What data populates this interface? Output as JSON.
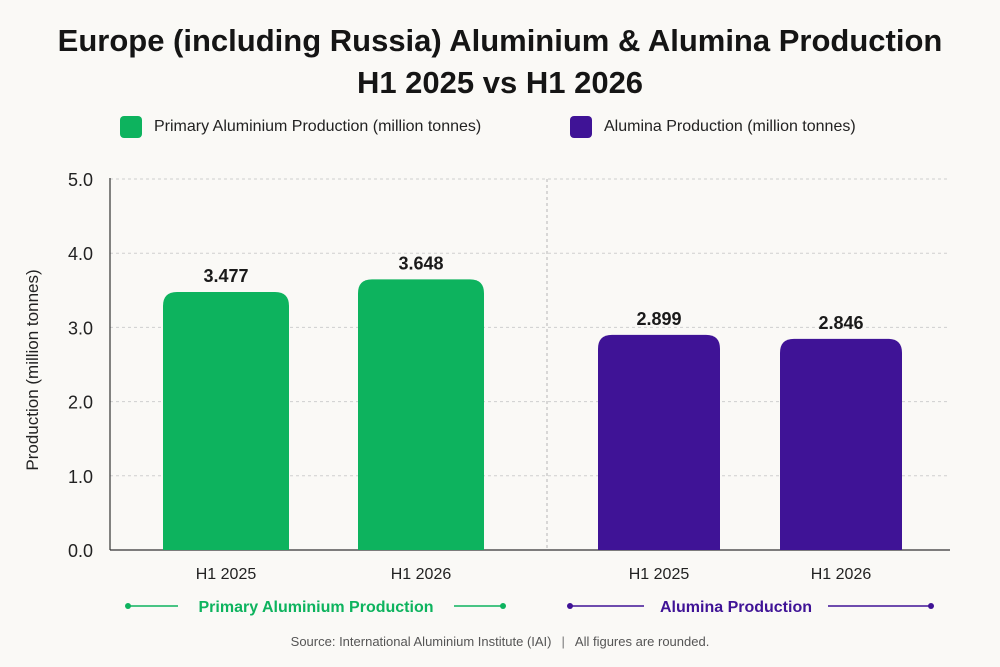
{
  "title_line1": "Europe (including Russia) Aluminium & Alumina Production",
  "title_line2": "H1 2025 vs H1 2026",
  "legend": [
    {
      "label": "Primary Aluminium Production (million tonnes)",
      "color": "#0db35e"
    },
    {
      "label": "Alumina Production (million tonnes)",
      "color": "#3f1396"
    }
  ],
  "footer": {
    "source": "Source: International Aluminium Institute (IAI)",
    "separator": "|",
    "note": "All figures are rounded."
  },
  "chart_data": {
    "type": "bar",
    "title": "Europe (including Russia) Aluminium & Alumina Production H1 2025 vs H1 2026",
    "ylabel": "Production (million tonnes)",
    "ylim": [
      0,
      5
    ],
    "yticks": [
      "0.0",
      "1.0",
      "2.0",
      "3.0",
      "4.0",
      "5.0"
    ],
    "grid": true,
    "legend_position": "top",
    "groups": [
      {
        "name": "Primary Aluminium Production",
        "color": "#0db35e",
        "categories": [
          "H1 2025",
          "H1 2026"
        ],
        "values": [
          3.477,
          3.648
        ],
        "labels": [
          "3.477",
          "3.648"
        ]
      },
      {
        "name": "Alumina Production",
        "color": "#3f1396",
        "categories": [
          "H1 2025",
          "H1 2026"
        ],
        "values": [
          2.899,
          2.846
        ],
        "labels": [
          "2.899",
          "2.846"
        ]
      }
    ]
  }
}
